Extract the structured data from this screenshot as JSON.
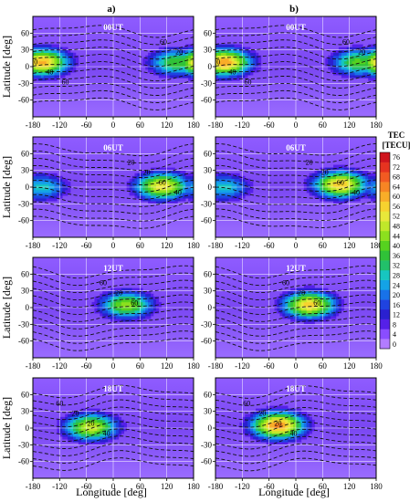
{
  "figure": {
    "column_labels": [
      "a)",
      "b)"
    ],
    "ylabel": "Latitude [deg]",
    "xlabel": "Longitude [deg]"
  },
  "colorbar": {
    "title_line1": "TEC",
    "title_line2": "[TECU]",
    "ticks": [
      0,
      4,
      8,
      12,
      16,
      20,
      24,
      28,
      32,
      36,
      40,
      44,
      48,
      52,
      56,
      60,
      64,
      68,
      72,
      76
    ],
    "colors": [
      "#b27cff",
      "#8a4dff",
      "#5520e8",
      "#2a20d0",
      "#1f43e0",
      "#1872e8",
      "#14a3e6",
      "#17c6c0",
      "#22c06a",
      "#30c238",
      "#56d21f",
      "#8ce01e",
      "#c0e82a",
      "#e8e83a",
      "#f7d22f",
      "#f9ad28",
      "#f78524",
      "#f25a22",
      "#e63320",
      "#cf141c"
    ]
  },
  "chart_data": [
    {
      "type": "heatmap",
      "panel": "a",
      "time_label": "00UT",
      "xlim": [
        -180,
        180
      ],
      "ylim": [
        -90,
        90
      ],
      "xticks": [
        -180,
        -120,
        -60,
        0,
        60,
        120,
        180
      ],
      "yticks": [
        60,
        30,
        0,
        -30,
        -60
      ],
      "contour_labels": [
        "60",
        "20",
        "20",
        "40",
        "60"
      ],
      "peaks": [
        {
          "lon": -160,
          "lat": 8,
          "tec": 62
        },
        {
          "lon": 140,
          "lat": 8,
          "tec": 40
        }
      ]
    },
    {
      "type": "heatmap",
      "panel": "b",
      "time_label": "00UT",
      "xlim": [
        -180,
        180
      ],
      "ylim": [
        -90,
        90
      ],
      "xticks": [
        -180,
        -120,
        -60,
        0,
        60,
        120,
        180
      ],
      "yticks": [
        60,
        30,
        0,
        -30,
        -60
      ],
      "contour_labels": [
        "60",
        "20",
        "20",
        "40",
        "60"
      ],
      "peaks": [
        {
          "lon": -160,
          "lat": 8,
          "tec": 64
        },
        {
          "lon": 140,
          "lat": 8,
          "tec": 42
        }
      ]
    },
    {
      "type": "heatmap",
      "panel": "a",
      "time_label": "06UT",
      "xlim": [
        -180,
        180
      ],
      "ylim": [
        -90,
        90
      ],
      "xticks": [
        -180,
        -120,
        -60,
        0,
        60,
        120,
        180
      ],
      "yticks": [
        60,
        30,
        0,
        -30,
        -60
      ],
      "contour_labels": [
        "20",
        "20",
        "60",
        "40"
      ],
      "peaks": [
        {
          "lon": 110,
          "lat": 2,
          "tec": 56
        },
        {
          "lon": -160,
          "lat": 0,
          "tec": 30
        }
      ]
    },
    {
      "type": "heatmap",
      "panel": "b",
      "time_label": "06UT",
      "xlim": [
        -180,
        180
      ],
      "ylim": [
        -90,
        90
      ],
      "xticks": [
        -180,
        -120,
        -60,
        0,
        60,
        120,
        180
      ],
      "yticks": [
        60,
        30,
        0,
        -30,
        -60
      ],
      "contour_labels": [
        "20",
        "20",
        "60",
        "40"
      ],
      "peaks": [
        {
          "lon": 100,
          "lat": 5,
          "tec": 60
        },
        {
          "lon": -160,
          "lat": 0,
          "tec": 30
        }
      ]
    },
    {
      "type": "heatmap",
      "panel": "a",
      "time_label": "12UT",
      "xlim": [
        -180,
        180
      ],
      "ylim": [
        -90,
        90
      ],
      "xticks": [
        -180,
        -120,
        -60,
        0,
        60,
        120,
        180
      ],
      "yticks": [
        60,
        30,
        0,
        -30,
        -60
      ],
      "contour_labels": [
        "60",
        "20",
        "60"
      ],
      "peaks": [
        {
          "lon": 30,
          "lat": 5,
          "tec": 46
        }
      ]
    },
    {
      "type": "heatmap",
      "panel": "b",
      "time_label": "12UT",
      "xlim": [
        -180,
        180
      ],
      "ylim": [
        -90,
        90
      ],
      "xticks": [
        -180,
        -120,
        -60,
        0,
        60,
        120,
        180
      ],
      "yticks": [
        60,
        30,
        0,
        -30,
        -60
      ],
      "contour_labels": [
        "60",
        "20",
        "60"
      ],
      "peaks": [
        {
          "lon": 30,
          "lat": 5,
          "tec": 58
        }
      ]
    },
    {
      "type": "heatmap",
      "panel": "a",
      "time_label": "18UT",
      "xlim": [
        -180,
        180
      ],
      "ylim": [
        -90,
        90
      ],
      "xticks": [
        -180,
        -120,
        -60,
        0,
        60,
        120,
        180
      ],
      "yticks": [
        60,
        30,
        0,
        -30,
        -60
      ],
      "contour_labels": [
        "60",
        "20",
        "20",
        "40"
      ],
      "peaks": [
        {
          "lon": -50,
          "lat": 2,
          "tec": 52
        }
      ]
    },
    {
      "type": "heatmap",
      "panel": "b",
      "time_label": "18UT",
      "xlim": [
        -180,
        180
      ],
      "ylim": [
        -90,
        90
      ],
      "xticks": [
        -180,
        -120,
        -60,
        0,
        60,
        120,
        180
      ],
      "yticks": [
        60,
        30,
        0,
        -30,
        -60
      ],
      "contour_labels": [
        "60",
        "20",
        "20",
        "40"
      ],
      "peaks": [
        {
          "lon": -40,
          "lat": 5,
          "tec": 66
        }
      ]
    }
  ]
}
